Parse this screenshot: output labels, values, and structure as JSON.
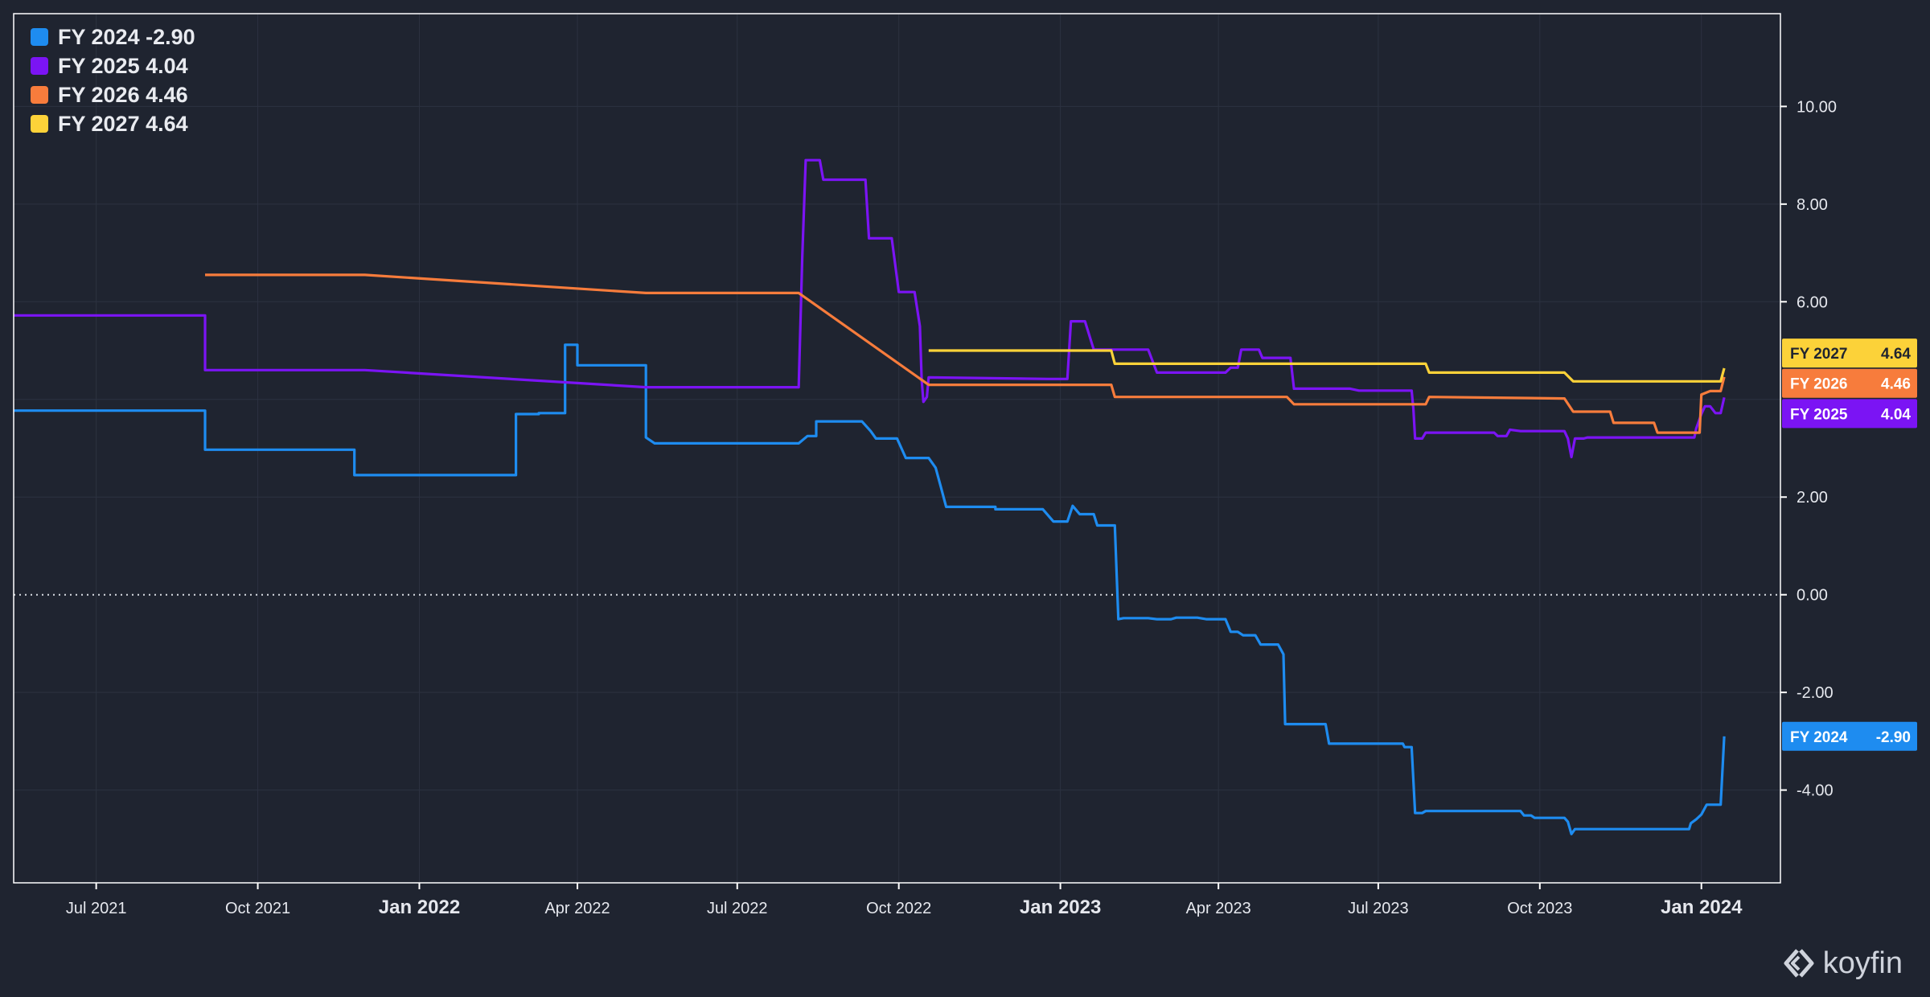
{
  "brand": {
    "name": "koyfin",
    "icon": "koyfin-logo-icon"
  },
  "colors": {
    "background": "#1f2430",
    "grid": "#2c3240",
    "frame": "#ffffff",
    "series": [
      "#1e8cf0",
      "#7b14f4",
      "#f77c3c",
      "#fcd239"
    ]
  },
  "legend": [
    {
      "label": "FY 2024 -2.90",
      "color": "#1e8cf0"
    },
    {
      "label": "FY 2025 4.04",
      "color": "#7b14f4"
    },
    {
      "label": "FY 2026 4.46",
      "color": "#f77c3c"
    },
    {
      "label": "FY 2027 4.64",
      "color": "#fcd239"
    }
  ],
  "value_tags": [
    {
      "name": "FY 2027",
      "value": "4.64",
      "color": "#fcd239",
      "text_color": "#1f2430"
    },
    {
      "name": "FY 2026",
      "value": "4.46",
      "color": "#f77c3c",
      "text_color": "#ffffff"
    },
    {
      "name": "FY 2025",
      "value": "4.04",
      "color": "#7b14f4",
      "text_color": "#ffffff"
    },
    {
      "name": "FY 2024",
      "value": "-2.90",
      "color": "#1e8cf0",
      "text_color": "#ffffff"
    }
  ],
  "chart_data": {
    "type": "line",
    "title": "",
    "xlabel": "",
    "ylabel": "",
    "x_range": [
      "2021-05-15",
      "2024-02-15"
    ],
    "ylim": [
      -5.9,
      11.9
    ],
    "grid": true,
    "legend_position": "top-left",
    "y_ticks": [
      "10.00",
      "8.00",
      "6.00",
      "2.00",
      "0.00",
      "-2.00",
      "-4.00"
    ],
    "y_tick_values": [
      10,
      8,
      6,
      2,
      0,
      -2,
      -4
    ],
    "x_ticks": [
      {
        "label": "Jul 2021",
        "date": "2021-07-01",
        "major": false
      },
      {
        "label": "Oct 2021",
        "date": "2021-10-01",
        "major": false
      },
      {
        "label": "Jan 2022",
        "date": "2022-01-01",
        "major": true
      },
      {
        "label": "Apr 2022",
        "date": "2022-04-01",
        "major": false
      },
      {
        "label": "Jul 2022",
        "date": "2022-07-01",
        "major": false
      },
      {
        "label": "Oct 2022",
        "date": "2022-10-01",
        "major": false
      },
      {
        "label": "Jan 2023",
        "date": "2023-01-01",
        "major": true
      },
      {
        "label": "Apr 2023",
        "date": "2023-04-01",
        "major": false
      },
      {
        "label": "Jul 2023",
        "date": "2023-07-01",
        "major": false
      },
      {
        "label": "Oct 2023",
        "date": "2023-10-01",
        "major": false
      },
      {
        "label": "Jan 2024",
        "date": "2024-01-01",
        "major": true
      }
    ],
    "series": [
      {
        "name": "FY 2024",
        "color": "#1e8cf0",
        "points": [
          [
            "2021-05-15",
            3.77
          ],
          [
            "2021-09-01",
            3.77
          ],
          [
            "2021-09-01",
            2.97
          ],
          [
            "2021-11-25",
            2.97
          ],
          [
            "2021-11-25",
            2.45
          ],
          [
            "2022-02-25",
            2.45
          ],
          [
            "2022-02-25",
            3.7
          ],
          [
            "2022-03-10",
            3.7
          ],
          [
            "2022-03-10",
            3.72
          ],
          [
            "2022-03-25",
            3.72
          ],
          [
            "2022-03-25",
            5.12
          ],
          [
            "2022-04-01",
            5.12
          ],
          [
            "2022-04-01",
            4.7
          ],
          [
            "2022-05-10",
            4.7
          ],
          [
            "2022-05-10",
            3.22
          ],
          [
            "2022-05-15",
            3.1
          ],
          [
            "2022-08-05",
            3.1
          ],
          [
            "2022-08-10",
            3.25
          ],
          [
            "2022-08-15",
            3.25
          ],
          [
            "2022-08-15",
            3.55
          ],
          [
            "2022-09-10",
            3.55
          ],
          [
            "2022-09-15",
            3.35
          ],
          [
            "2022-09-18",
            3.2
          ],
          [
            "2022-09-30",
            3.2
          ],
          [
            "2022-10-05",
            2.8
          ],
          [
            "2022-10-18",
            2.8
          ],
          [
            "2022-10-22",
            2.6
          ],
          [
            "2022-10-25",
            2.2
          ],
          [
            "2022-10-28",
            1.8
          ],
          [
            "2022-11-25",
            1.8
          ],
          [
            "2022-11-25",
            1.75
          ],
          [
            "2022-12-22",
            1.75
          ],
          [
            "2022-12-28",
            1.5
          ],
          [
            "2023-01-05",
            1.5
          ],
          [
            "2023-01-08",
            1.82
          ],
          [
            "2023-01-12",
            1.65
          ],
          [
            "2023-01-20",
            1.65
          ],
          [
            "2023-01-22",
            1.42
          ],
          [
            "2023-02-01",
            1.42
          ],
          [
            "2023-02-03",
            -0.5
          ],
          [
            "2023-02-06",
            -0.48
          ],
          [
            "2023-02-20",
            -0.48
          ],
          [
            "2023-02-25",
            -0.5
          ],
          [
            "2023-03-05",
            -0.5
          ],
          [
            "2023-03-08",
            -0.47
          ],
          [
            "2023-03-20",
            -0.47
          ],
          [
            "2023-03-25",
            -0.5
          ],
          [
            "2023-04-05",
            -0.5
          ],
          [
            "2023-04-08",
            -0.76
          ],
          [
            "2023-04-12",
            -0.76
          ],
          [
            "2023-04-15",
            -0.83
          ],
          [
            "2023-04-22",
            -0.83
          ],
          [
            "2023-04-25",
            -1.02
          ],
          [
            "2023-05-05",
            -1.02
          ],
          [
            "2023-05-08",
            -1.22
          ],
          [
            "2023-05-09",
            -2.65
          ],
          [
            "2023-06-01",
            -2.65
          ],
          [
            "2023-06-03",
            -3.05
          ],
          [
            "2023-07-15",
            -3.05
          ],
          [
            "2023-07-16",
            -3.12
          ],
          [
            "2023-07-20",
            -3.12
          ],
          [
            "2023-07-22",
            -4.47
          ],
          [
            "2023-07-26",
            -4.47
          ],
          [
            "2023-07-28",
            -4.43
          ],
          [
            "2023-09-20",
            -4.43
          ],
          [
            "2023-09-22",
            -4.52
          ],
          [
            "2023-09-26",
            -4.52
          ],
          [
            "2023-09-28",
            -4.57
          ],
          [
            "2023-10-15",
            -4.57
          ],
          [
            "2023-10-17",
            -4.65
          ],
          [
            "2023-10-19",
            -4.9
          ],
          [
            "2023-10-21",
            -4.8
          ],
          [
            "2023-12-25",
            -4.8
          ],
          [
            "2023-12-26",
            -4.68
          ],
          [
            "2023-12-29",
            -4.6
          ],
          [
            "2024-01-01",
            -4.5
          ],
          [
            "2024-01-04",
            -4.3
          ],
          [
            "2024-01-12",
            -4.3
          ],
          [
            "2024-01-14",
            -2.9
          ]
        ]
      },
      {
        "name": "FY 2025",
        "color": "#7b14f4",
        "points": [
          [
            "2021-05-15",
            5.72
          ],
          [
            "2021-09-01",
            5.72
          ],
          [
            "2021-09-01",
            4.6
          ],
          [
            "2021-12-01",
            4.6
          ],
          [
            "2022-05-10",
            4.25
          ],
          [
            "2022-08-05",
            4.25
          ],
          [
            "2022-08-07",
            6.9
          ],
          [
            "2022-08-09",
            8.9
          ],
          [
            "2022-08-17",
            8.9
          ],
          [
            "2022-08-19",
            8.5
          ],
          [
            "2022-09-12",
            8.5
          ],
          [
            "2022-09-14",
            7.3
          ],
          [
            "2022-09-27",
            7.3
          ],
          [
            "2022-10-01",
            6.2
          ],
          [
            "2022-10-10",
            6.2
          ],
          [
            "2022-10-13",
            5.5
          ],
          [
            "2022-10-14",
            4.4
          ],
          [
            "2022-10-15",
            3.95
          ],
          [
            "2022-10-17",
            4.05
          ],
          [
            "2022-10-18",
            4.45
          ],
          [
            "2022-12-25",
            4.42
          ],
          [
            "2023-01-05",
            4.42
          ],
          [
            "2023-01-07",
            5.6
          ],
          [
            "2023-01-15",
            5.6
          ],
          [
            "2023-01-20",
            5.02
          ],
          [
            "2023-02-20",
            5.02
          ],
          [
            "2023-02-25",
            4.55
          ],
          [
            "2023-04-05",
            4.55
          ],
          [
            "2023-04-08",
            4.65
          ],
          [
            "2023-04-12",
            4.65
          ],
          [
            "2023-04-14",
            5.02
          ],
          [
            "2023-04-24",
            5.02
          ],
          [
            "2023-04-26",
            4.85
          ],
          [
            "2023-05-12",
            4.85
          ],
          [
            "2023-05-14",
            4.22
          ],
          [
            "2023-06-15",
            4.22
          ],
          [
            "2023-06-20",
            4.18
          ],
          [
            "2023-07-20",
            4.18
          ],
          [
            "2023-07-21",
            3.8
          ],
          [
            "2023-07-22",
            3.2
          ],
          [
            "2023-07-26",
            3.2
          ],
          [
            "2023-07-28",
            3.32
          ],
          [
            "2023-09-05",
            3.32
          ],
          [
            "2023-09-07",
            3.25
          ],
          [
            "2023-09-12",
            3.25
          ],
          [
            "2023-09-14",
            3.38
          ],
          [
            "2023-09-20",
            3.35
          ],
          [
            "2023-10-15",
            3.35
          ],
          [
            "2023-10-17",
            3.2
          ],
          [
            "2023-10-19",
            2.82
          ],
          [
            "2023-10-21",
            3.2
          ],
          [
            "2023-10-26",
            3.2
          ],
          [
            "2023-10-28",
            3.22
          ],
          [
            "2023-12-28",
            3.22
          ],
          [
            "2023-12-29",
            3.4
          ],
          [
            "2024-01-01",
            3.7
          ],
          [
            "2024-01-03",
            3.86
          ],
          [
            "2024-01-06",
            3.86
          ],
          [
            "2024-01-09",
            3.72
          ],
          [
            "2024-01-12",
            3.72
          ],
          [
            "2024-01-14",
            4.04
          ]
        ]
      },
      {
        "name": "FY 2026",
        "color": "#f77c3c",
        "points": [
          [
            "2021-09-01",
            6.55
          ],
          [
            "2021-12-01",
            6.55
          ],
          [
            "2022-05-10",
            6.18
          ],
          [
            "2022-08-05",
            6.18
          ],
          [
            "2022-10-18",
            4.3
          ],
          [
            "2023-01-30",
            4.3
          ],
          [
            "2023-02-01",
            4.05
          ],
          [
            "2023-05-10",
            4.05
          ],
          [
            "2023-05-14",
            3.9
          ],
          [
            "2023-07-28",
            3.9
          ],
          [
            "2023-07-30",
            4.05
          ],
          [
            "2023-10-15",
            4.02
          ],
          [
            "2023-10-20",
            3.75
          ],
          [
            "2023-11-10",
            3.75
          ],
          [
            "2023-11-12",
            3.52
          ],
          [
            "2023-12-05",
            3.52
          ],
          [
            "2023-12-07",
            3.32
          ],
          [
            "2023-12-31",
            3.32
          ],
          [
            "2024-01-01",
            4.1
          ],
          [
            "2024-01-06",
            4.17
          ],
          [
            "2024-01-12",
            4.17
          ],
          [
            "2024-01-14",
            4.46
          ]
        ]
      },
      {
        "name": "FY 2027",
        "color": "#fcd239",
        "points": [
          [
            "2022-10-18",
            5.0
          ],
          [
            "2023-01-30",
            5.0
          ],
          [
            "2023-02-01",
            4.73
          ],
          [
            "2023-07-28",
            4.73
          ],
          [
            "2023-07-30",
            4.55
          ],
          [
            "2023-10-15",
            4.55
          ],
          [
            "2023-10-20",
            4.37
          ],
          [
            "2024-01-12",
            4.37
          ],
          [
            "2024-01-14",
            4.64
          ]
        ]
      }
    ]
  }
}
